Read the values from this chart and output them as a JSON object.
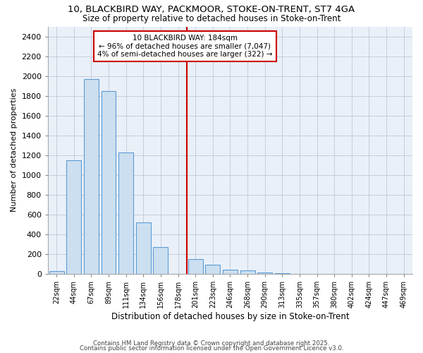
{
  "title_line1": "10, BLACKBIRD WAY, PACKMOOR, STOKE-ON-TRENT, ST7 4GA",
  "title_line2": "Size of property relative to detached houses in Stoke-on-Trent",
  "xlabel": "Distribution of detached houses by size in Stoke-on-Trent",
  "ylabel": "Number of detached properties",
  "annotation_line1": "10 BLACKBIRD WAY: 184sqm",
  "annotation_line2": "← 96% of detached houses are smaller (7,047)",
  "annotation_line3": "4% of semi-detached houses are larger (322) →",
  "bar_color": "#ccdff0",
  "bar_edge_color": "#5b9bd5",
  "vline_color": "#cc0000",
  "annotation_box_color": "#cc0000",
  "annotation_box_fill": "white",
  "background_color": "#eaf0f8",
  "categories": [
    "22sqm",
    "44sqm",
    "67sqm",
    "89sqm",
    "111sqm",
    "134sqm",
    "156sqm",
    "178sqm",
    "201sqm",
    "223sqm",
    "246sqm",
    "268sqm",
    "290sqm",
    "313sqm",
    "335sqm",
    "357sqm",
    "380sqm",
    "402sqm",
    "424sqm",
    "447sqm",
    "469sqm"
  ],
  "values": [
    30,
    1150,
    1970,
    1850,
    1230,
    520,
    270,
    0,
    150,
    90,
    45,
    35,
    15,
    5,
    0,
    0,
    0,
    0,
    0,
    0,
    0
  ],
  "ylim": [
    0,
    2500
  ],
  "yticks": [
    0,
    200,
    400,
    600,
    800,
    1000,
    1200,
    1400,
    1600,
    1800,
    2000,
    2200,
    2400
  ],
  "vline_position": 7.5,
  "footer_line1": "Contains HM Land Registry data © Crown copyright and database right 2025.",
  "footer_line2": "Contains public sector information licensed under the Open Government Licence v3.0."
}
